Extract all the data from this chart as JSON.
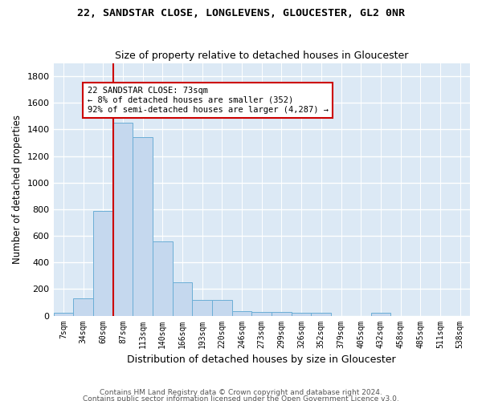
{
  "title1": "22, SANDSTAR CLOSE, LONGLEVENS, GLOUCESTER, GL2 0NR",
  "title2": "Size of property relative to detached houses in Gloucester",
  "xlabel": "Distribution of detached houses by size in Gloucester",
  "ylabel": "Number of detached properties",
  "bar_color": "#c5d8ee",
  "bar_edge_color": "#6baed6",
  "background_color": "#dce9f5",
  "grid_color": "#ffffff",
  "bin_labels": [
    "7sqm",
    "34sqm",
    "60sqm",
    "87sqm",
    "113sqm",
    "140sqm",
    "166sqm",
    "193sqm",
    "220sqm",
    "246sqm",
    "273sqm",
    "299sqm",
    "326sqm",
    "352sqm",
    "379sqm",
    "405sqm",
    "432sqm",
    "458sqm",
    "485sqm",
    "511sqm",
    "538sqm"
  ],
  "bar_heights": [
    20,
    130,
    790,
    1450,
    1340,
    560,
    250,
    115,
    115,
    35,
    30,
    25,
    20,
    20,
    0,
    0,
    20,
    0,
    0,
    0,
    0
  ],
  "red_line_x": 2.5,
  "annotation_text": "22 SANDSTAR CLOSE: 73sqm\n← 8% of detached houses are smaller (352)\n92% of semi-detached houses are larger (4,287) →",
  "annotation_box_color": "#ffffff",
  "annotation_border_color": "#cc0000",
  "ylim": [
    0,
    1900
  ],
  "yticks": [
    0,
    200,
    400,
    600,
    800,
    1000,
    1200,
    1400,
    1600,
    1800
  ],
  "footnote1": "Contains HM Land Registry data © Crown copyright and database right 2024.",
  "footnote2": "Contains public sector information licensed under the Open Government Licence v3.0."
}
